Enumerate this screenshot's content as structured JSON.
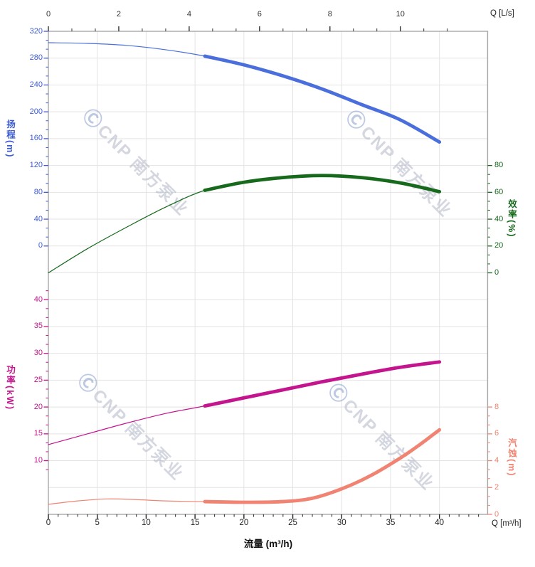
{
  "watermark": {
    "logo": "Ⓒ",
    "brand": "CNP",
    "name": "南方泵业"
  },
  "top_axis": {
    "label": "Q [L/s]",
    "tick_values": [
      0,
      2,
      4,
      6,
      8,
      10
    ],
    "color": "#333333"
  },
  "bottom_axis": {
    "label": "Q [m³/h]",
    "title": "流量 (m³/h)",
    "tick_values": [
      0,
      5,
      10,
      15,
      20,
      25,
      30,
      35,
      40
    ],
    "color": "#222222"
  },
  "head_axis": {
    "title": "扬程",
    "unit": "(m)",
    "tick_values": [
      320,
      280,
      240,
      200,
      160,
      120,
      80,
      40,
      0
    ],
    "color": "#3d5cd2"
  },
  "eff_axis": {
    "title": "效率",
    "unit": "(%)",
    "tick_values": [
      80,
      60,
      40,
      20,
      0
    ],
    "color": "#17691c"
  },
  "power_axis": {
    "title": "功率",
    "unit": "(kW)",
    "tick_values": [
      40,
      35,
      30,
      25,
      20,
      15,
      10
    ],
    "color": "#c4148e"
  },
  "npsh_axis": {
    "title": "汽蚀",
    "unit": "(m)",
    "tick_values": [
      8,
      6,
      4,
      2,
      0
    ],
    "color": "#f08372"
  },
  "grid": {
    "line_color": "#e3e3e3",
    "frame_color": "#a8a8a8",
    "on": true
  },
  "chart_data": {
    "type": "line",
    "x_unit": "m³/h",
    "x_range": [
      0,
      44.9
    ],
    "top_x_unit": "L/s",
    "legend": "none",
    "series": [
      {
        "name": "head",
        "axis": "head",
        "unit": "m",
        "color": "#4a6fdc",
        "thick_from": 16,
        "axis_range": [
          0,
          320
        ],
        "points": [
          [
            0,
            303
          ],
          [
            4,
            302
          ],
          [
            8,
            299
          ],
          [
            12,
            292.5
          ],
          [
            16,
            283
          ],
          [
            20,
            270
          ],
          [
            24,
            253.5
          ],
          [
            28,
            234
          ],
          [
            32,
            211
          ],
          [
            36,
            188
          ],
          [
            40,
            155
          ]
        ]
      },
      {
        "name": "efficiency",
        "axis": "eff",
        "unit": "%",
        "color": "#17691c",
        "thick_from": 16,
        "axis_range": [
          0,
          80
        ],
        "points": [
          [
            0,
            0
          ],
          [
            4,
            18
          ],
          [
            8,
            34
          ],
          [
            12,
            49
          ],
          [
            16,
            61.5
          ],
          [
            20,
            67.5
          ],
          [
            24,
            71
          ],
          [
            28,
            72.5
          ],
          [
            32,
            71
          ],
          [
            36,
            67
          ],
          [
            40,
            60.5
          ]
        ]
      },
      {
        "name": "power",
        "axis": "power",
        "unit": "kW",
        "color": "#c4148e",
        "thick_from": 16,
        "axis_range": [
          10,
          40
        ],
        "points": [
          [
            0,
            13
          ],
          [
            4,
            15
          ],
          [
            8,
            17
          ],
          [
            12,
            18.8
          ],
          [
            16,
            20.2
          ],
          [
            20,
            21.7
          ],
          [
            24,
            23.2
          ],
          [
            28,
            24.7
          ],
          [
            32,
            26.1
          ],
          [
            36,
            27.4
          ],
          [
            40,
            28.4
          ]
        ]
      },
      {
        "name": "npsh",
        "axis": "npsh",
        "unit": "m",
        "color": "#f08372",
        "thick_from": 16,
        "axis_range": [
          0,
          8
        ],
        "points": [
          [
            0,
            0.75
          ],
          [
            3,
            1.0
          ],
          [
            6,
            1.15
          ],
          [
            9,
            1.1
          ],
          [
            12,
            1.0
          ],
          [
            16,
            0.95
          ],
          [
            20,
            0.9
          ],
          [
            24,
            0.95
          ],
          [
            27,
            1.2
          ],
          [
            30,
            1.9
          ],
          [
            33,
            2.9
          ],
          [
            36,
            4.2
          ],
          [
            38,
            5.2
          ],
          [
            40,
            6.3
          ]
        ]
      }
    ]
  }
}
